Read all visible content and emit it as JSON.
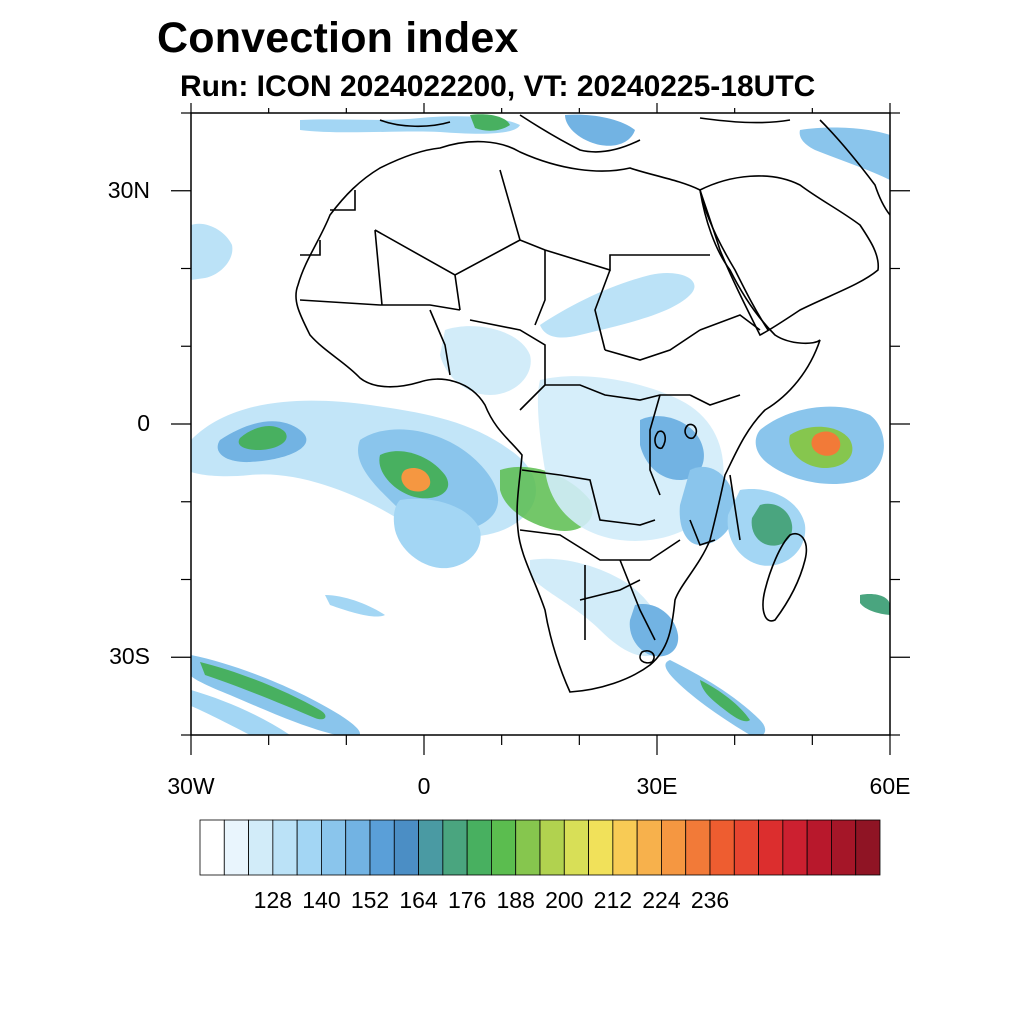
{
  "title": "Convection index",
  "subtitle": "Run: ICON 2024022200,  VT: 20240225-18UTC",
  "axes": {
    "lon_range": [
      -30,
      60
    ],
    "lat_range": [
      -40,
      40
    ],
    "x_ticks": [
      {
        "value": -30,
        "label": "30W"
      },
      {
        "value": 0,
        "label": "0"
      },
      {
        "value": 30,
        "label": "30E"
      },
      {
        "value": 60,
        "label": "60E"
      }
    ],
    "y_ticks": [
      {
        "value": 30,
        "label": "30N"
      },
      {
        "value": 0,
        "label": "0"
      },
      {
        "value": -30,
        "label": "30S"
      }
    ]
  },
  "colorbar": {
    "labels": [
      "128",
      "140",
      "152",
      "164",
      "176",
      "188",
      "200",
      "212",
      "224",
      "236"
    ],
    "colors": [
      "#ffffff",
      "#e9f5fd",
      "#d2ecf9",
      "#bbe2f7",
      "#a3d6f4",
      "#8ac5ec",
      "#72b3e3",
      "#5a9fd8",
      "#4b8ec5",
      "#4a9aa3",
      "#4aa57f",
      "#48b060",
      "#5bbd4f",
      "#86c64e",
      "#b1d24f",
      "#d8df57",
      "#f1e15a",
      "#f8cb55",
      "#f7b14c",
      "#f59741",
      "#f27a38",
      "#ee5d30",
      "#e74530",
      "#dc2e2e",
      "#cc2030",
      "#b8182c",
      "#a51628",
      "#8f1424"
    ]
  },
  "colors": {
    "boundary": "#000000",
    "frame": "#000000"
  }
}
